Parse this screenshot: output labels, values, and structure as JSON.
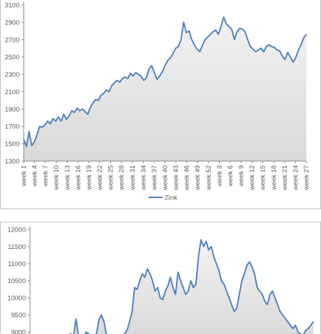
{
  "chart_data": [
    {
      "type": "area",
      "title": "",
      "xlabel": "",
      "ylabel": "",
      "ylim": [
        1300,
        3100
      ],
      "yticks": [
        1300,
        1500,
        1700,
        1900,
        2100,
        2300,
        2500,
        2700,
        2900,
        3100
      ],
      "xtick_labels": [
        "week 1",
        "week 4",
        "week 7",
        "week 10",
        "week 13",
        "week 16",
        "week 19",
        "week 22",
        "week 25",
        "week 28",
        "week 31",
        "week 34",
        "week 37",
        "week 40",
        "week 43",
        "week 46",
        "week 49",
        "week 52",
        "week 3",
        "week 6",
        "week 9",
        "week 12",
        "week 15",
        "week 18",
        "week 21",
        "week 24",
        "week 27"
      ],
      "legend": "bottom",
      "grid": false,
      "series": [
        {
          "name": "Zink",
          "color": "#4f81bd",
          "fill": "#d9d9d9",
          "values": [
            1550,
            1470,
            1640,
            1480,
            1520,
            1610,
            1700,
            1690,
            1720,
            1760,
            1730,
            1790,
            1760,
            1810,
            1760,
            1840,
            1780,
            1820,
            1880,
            1860,
            1910,
            1880,
            1900,
            1870,
            1840,
            1920,
            1970,
            2010,
            2000,
            2060,
            2080,
            2120,
            2100,
            2170,
            2200,
            2230,
            2210,
            2250,
            2270,
            2250,
            2310,
            2280,
            2320,
            2300,
            2280,
            2230,
            2260,
            2360,
            2400,
            2320,
            2240,
            2280,
            2330,
            2400,
            2460,
            2490,
            2540,
            2600,
            2620,
            2700,
            2900,
            2780,
            2800,
            2700,
            2640,
            2590,
            2560,
            2630,
            2700,
            2730,
            2760,
            2790,
            2810,
            2760,
            2850,
            2960,
            2880,
            2850,
            2820,
            2700,
            2790,
            2830,
            2820,
            2790,
            2700,
            2620,
            2590,
            2560,
            2580,
            2600,
            2560,
            2620,
            2640,
            2620,
            2610,
            2580,
            2570,
            2510,
            2470,
            2550,
            2500,
            2440,
            2490,
            2580,
            2640,
            2720,
            2760
          ]
        }
      ]
    },
    {
      "type": "area",
      "title": "",
      "xlabel": "",
      "ylabel": "",
      "ylim": [
        8800,
        12000
      ],
      "yticks": [
        9000,
        9500,
        10000,
        10500,
        11000,
        11500,
        12000
      ],
      "legend": "",
      "grid": false,
      "series": [
        {
          "name": "",
          "color": "#4f81bd",
          "fill": "#d9d9d9",
          "values": [
            8900,
            8870,
            8850,
            8860,
            8870,
            8900,
            8880,
            8860,
            8840,
            8820,
            8850,
            8870,
            8830,
            8850,
            8880,
            8900,
            8950,
            8870,
            9380,
            8900,
            8870,
            8860,
            9000,
            8950,
            8880,
            8900,
            8940,
            9350,
            9500,
            9300,
            8900,
            8850,
            8870,
            8830,
            8820,
            8860,
            8880,
            8950,
            9050,
            9300,
            9600,
            10300,
            10250,
            10500,
            10700,
            10600,
            10850,
            10700,
            10500,
            10200,
            10300,
            10000,
            9950,
            10200,
            10350,
            10600,
            10300,
            10100,
            10750,
            10500,
            10300,
            10100,
            10200,
            10500,
            10300,
            10400,
            11200,
            11700,
            11500,
            11650,
            11400,
            11500,
            11200,
            11000,
            10800,
            10500,
            10400,
            10200,
            10000,
            9800,
            9600,
            9700,
            10100,
            10500,
            10700,
            10950,
            11050,
            10900,
            10700,
            10300,
            10200,
            10100,
            9900,
            9800,
            10100,
            10200,
            10000,
            9800,
            9600,
            9500,
            9400,
            9300,
            9200,
            9100,
            9200,
            9000,
            8950,
            8900,
            9050,
            9100,
            9200,
            9300
          ]
        }
      ]
    }
  ]
}
